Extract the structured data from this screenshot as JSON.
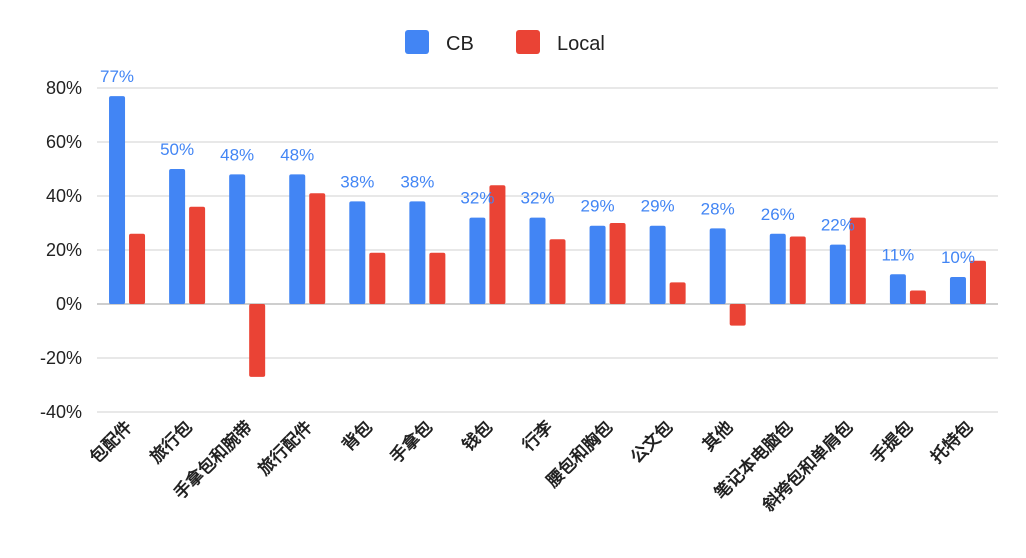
{
  "chart_data": {
    "type": "bar",
    "categories": [
      "包配件",
      "旅行包",
      "手拿包和腕带",
      "旅行配件",
      "背包",
      "手拿包",
      "钱包",
      "行李",
      "腰包和胸包",
      "公文包",
      "其他",
      "笔记本电脑包",
      "斜挎包和单肩包",
      "手提包",
      "托特包"
    ],
    "series": [
      {
        "name": "CB",
        "color": "#4285f4",
        "values": [
          77,
          50,
          48,
          48,
          38,
          38,
          32,
          32,
          29,
          29,
          28,
          26,
          22,
          11,
          10
        ],
        "labels": [
          "77%",
          "50%",
          "48%",
          "48%",
          "38%",
          "38%",
          "32%",
          "32%",
          "29%",
          "29%",
          "28%",
          "26%",
          "22%",
          "11%",
          "10%"
        ]
      },
      {
        "name": "Local",
        "color": "#ea4335",
        "values": [
          26,
          36,
          -27,
          41,
          19,
          19,
          44,
          24,
          30,
          8,
          -8,
          25,
          32,
          5,
          16
        ]
      }
    ],
    "ylim": [
      -40,
      80
    ],
    "yticks": [
      -40,
      -20,
      0,
      20,
      40,
      60,
      80
    ],
    "ytick_labels": [
      "-40%",
      "-20%",
      "0%",
      "20%",
      "40%",
      "60%",
      "80%"
    ],
    "grid": true,
    "legend_position": "top-center",
    "data_label_color": "#4285f4",
    "title": "",
    "xlabel": "",
    "ylabel": ""
  }
}
